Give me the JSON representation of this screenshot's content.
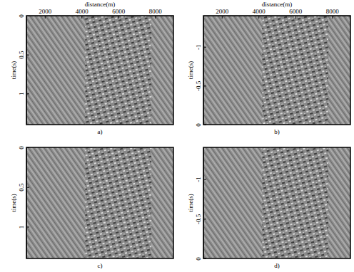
{
  "chart_data": [
    {
      "type": "image",
      "title": "a)",
      "xlabel": "distance(m)",
      "ylabel": "time(s)",
      "xlim": [
        1000,
        9000
      ],
      "xticks": [
        2000,
        4000,
        6000,
        8000
      ],
      "ylim": [
        0,
        1.4
      ],
      "yticks": [
        0,
        0.5,
        1
      ]
    },
    {
      "type": "image",
      "title": "b)",
      "xlabel": "distance(m)",
      "ylabel": "time(s)",
      "xlim": [
        1000,
        9000
      ],
      "xticks": [
        2000,
        4000,
        6000,
        8000
      ],
      "ylim": [
        -1.4,
        0
      ],
      "yticks": [
        -1,
        -0.5,
        0
      ]
    },
    {
      "type": "image",
      "title": "c)",
      "ylabel": "time(s)",
      "xlim": [
        1000,
        9000
      ],
      "ylim": [
        0,
        1.4
      ],
      "yticks": [
        0,
        0.5,
        1
      ],
      "tick_labels": "y"
    },
    {
      "type": "image",
      "title": "d)",
      "ylabel": "time(s)",
      "xlim": [
        1000,
        9000
      ],
      "ylim": [
        -1.4,
        0
      ],
      "yticks": [
        -1,
        -0.5,
        0
      ],
      "tick_labels": "y"
    }
  ]
}
